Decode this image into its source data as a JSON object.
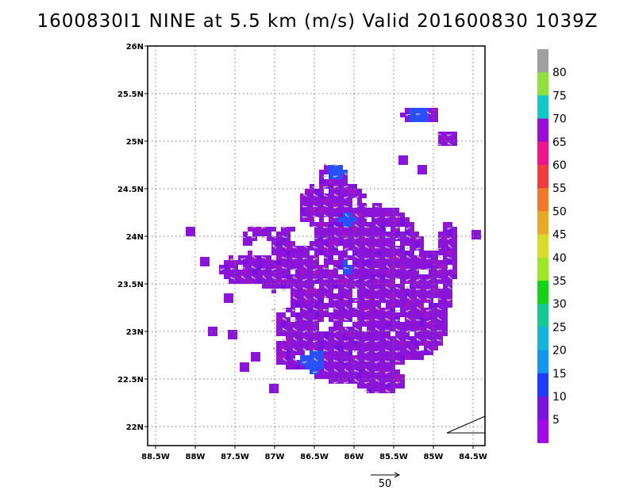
{
  "title": "1600830I1 NINE at 5.5 km (m/s) Valid 201600830 1039Z",
  "map": {
    "x_ticks": [
      "88.5W",
      "88W",
      "87.5W",
      "87W",
      "86.5W",
      "86W",
      "85.5W",
      "85W",
      "84.5W"
    ],
    "y_ticks": [
      "26N",
      "25.5N",
      "25N",
      "24.5N",
      "24N",
      "23.5N",
      "23N",
      "22.5N",
      "22N"
    ],
    "lon_range": [
      -88.6,
      -84.35
    ],
    "lat_range": [
      21.8,
      26.0
    ],
    "grid": true
  },
  "colorbar": {
    "labels": [
      "80",
      "75",
      "70",
      "65",
      "60",
      "55",
      "50",
      "45",
      "40",
      "35",
      "30",
      "25",
      "20",
      "15",
      "10",
      "5"
    ],
    "colors": [
      "#a0a0a0",
      "#8ee03c",
      "#0fc8c8",
      "#9a0fd6",
      "#f0148c",
      "#f03c3c",
      "#f07828",
      "#e6aa28",
      "#d8dc28",
      "#a0e628",
      "#14d214",
      "#14c896",
      "#14b4dc",
      "#1496f0",
      "#1e3cff",
      "#7814dc",
      "#a00ae6"
    ]
  },
  "legend": {
    "reference_vector_label": "50"
  }
}
